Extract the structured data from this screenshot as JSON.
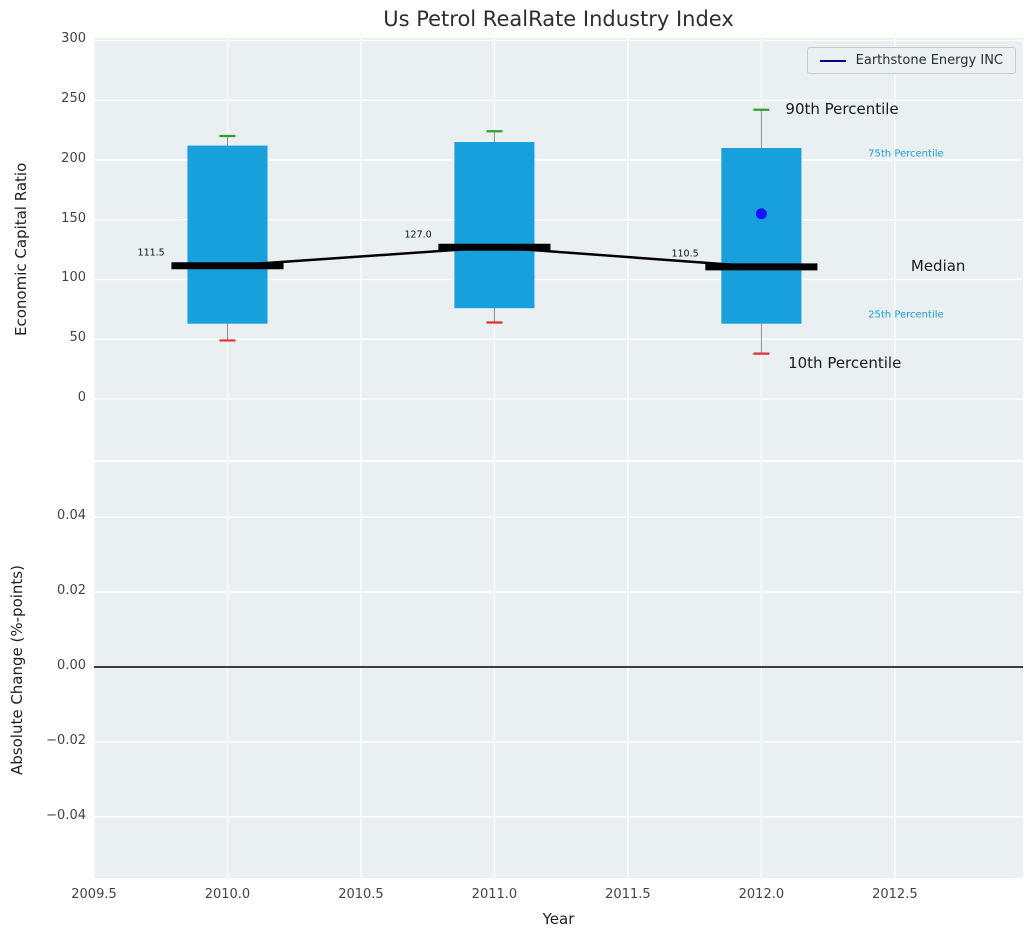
{
  "figure": {
    "title": "Us Petrol RealRate Industry Index",
    "background": "#ffffff",
    "plot_background": "#eaeff1",
    "grid_color": "#ffffff"
  },
  "chart_data": [
    {
      "type": "box",
      "name": "economic-capital-ratio-boxplot",
      "title": "Us Petrol RealRate Industry Index",
      "ylabel": "Economic Capital Ratio",
      "xlabel": "",
      "xlim": [
        2009.5,
        2012.98
      ],
      "ylim": [
        -51,
        302
      ],
      "xticks": [
        2009.5,
        2010.0,
        2010.5,
        2011.0,
        2011.5,
        2012.0,
        2012.5
      ],
      "yticks": [
        0,
        50,
        100,
        150,
        200,
        250,
        300
      ],
      "ytick_labels": [
        "0",
        "50",
        "100",
        "150",
        "200",
        "250",
        "300"
      ],
      "grid": true,
      "legend_position": "upper right",
      "box_half_width": 0.15,
      "median_half_width": 0.21,
      "cap_half_width": 0.03,
      "boxes": [
        {
          "x": 2010,
          "p10": 49,
          "p25": 63,
          "median": 111.5,
          "p75": 212,
          "p90": 220,
          "median_label": "111.5"
        },
        {
          "x": 2011,
          "p10": 64,
          "p25": 76,
          "median": 127.0,
          "p75": 215,
          "p90": 224,
          "median_label": "127.0"
        },
        {
          "x": 2012,
          "p10": 38,
          "p25": 63,
          "median": 110.5,
          "p75": 210,
          "p90": 242,
          "median_label": "110.5"
        }
      ],
      "company_point": {
        "label": "Earthstone Energy INC",
        "x": 2012,
        "y": 155
      },
      "legend": {
        "label": "Earthstone Energy INC"
      },
      "annotations": [
        {
          "text": "90th Percentile",
          "x": 2012.09,
          "y": 243,
          "color": "#1a1a1a",
          "size": 15
        },
        {
          "text": "75th Percentile",
          "x": 2012.4,
          "y": 205,
          "color": "#18a0dc",
          "size": 10
        },
        {
          "text": "Median",
          "x": 2012.56,
          "y": 111,
          "color": "#1a1a1a",
          "size": 15
        },
        {
          "text": "25th Percentile",
          "x": 2012.4,
          "y": 70,
          "color": "#18a0dc",
          "size": 10
        },
        {
          "text": "10th Percentile",
          "x": 2012.1,
          "y": 30,
          "color": "#1a1a1a",
          "size": 15
        }
      ],
      "colors": {
        "box": "#18a0dc",
        "whisker": "#8a8a8a",
        "p90_cap": "#2ca02c",
        "p10_cap": "#e03030",
        "median": "#000000",
        "company_point": "#1414ff",
        "legend_line": "#00008b"
      }
    },
    {
      "type": "line",
      "name": "absolute-change",
      "title": "",
      "ylabel": "Absolute Change (%-points)",
      "xlabel": "Year",
      "xlim": [
        2009.5,
        2012.98
      ],
      "ylim": [
        -0.0563,
        0.0547
      ],
      "xticks": [
        2009.5,
        2010.0,
        2010.5,
        2011.0,
        2011.5,
        2012.0,
        2012.5
      ],
      "xtick_labels": [
        "2009.5",
        "2010.0",
        "2010.5",
        "2011.0",
        "2011.5",
        "2012.0",
        "2012.5"
      ],
      "yticks": [
        0.04,
        0.02,
        0.0,
        -0.02,
        -0.04
      ],
      "ytick_labels": [
        "0.04",
        "0.02",
        "0.00",
        "−0.02",
        "−0.04"
      ],
      "grid": true,
      "zero_line": 0.0,
      "series": []
    }
  ]
}
